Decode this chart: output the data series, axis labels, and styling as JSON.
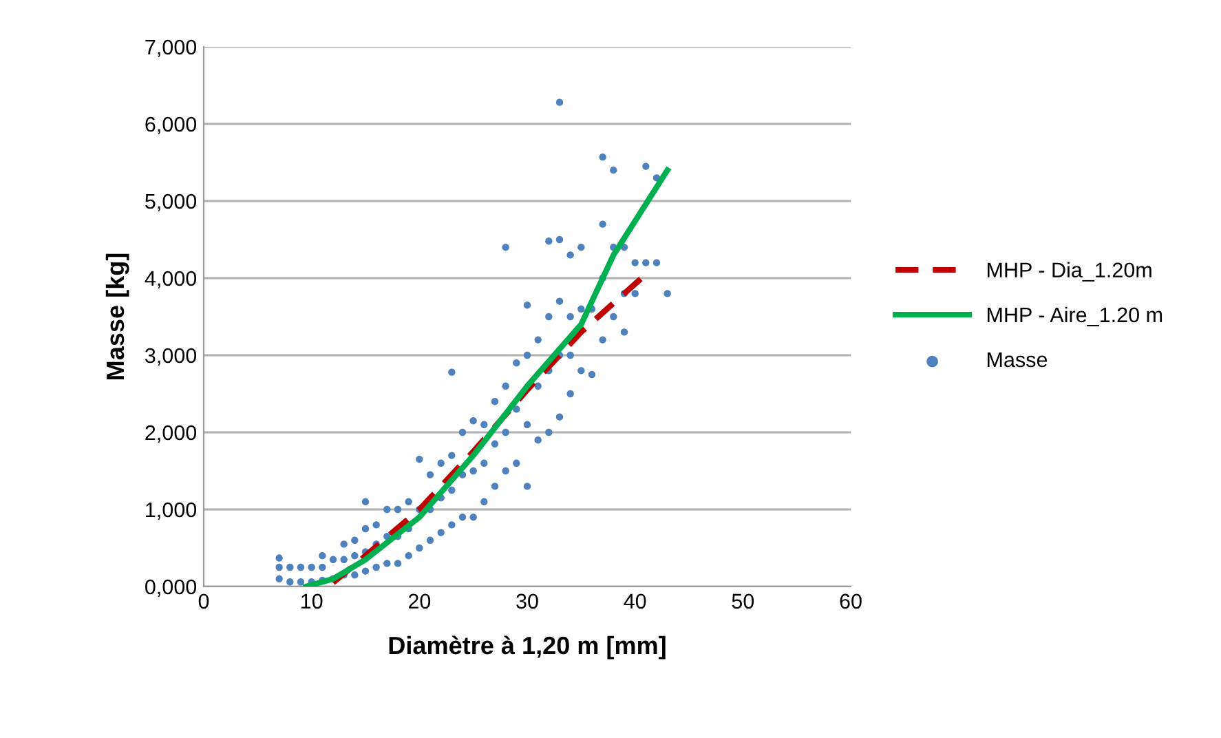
{
  "chart_data": {
    "type": "scatter",
    "xlabel": "Diamètre à 1,20 m [mm]",
    "ylabel": "Masse [kg]",
    "xlim": [
      0,
      60
    ],
    "xticks": [
      0,
      10,
      20,
      30,
      40,
      50,
      60
    ],
    "ylim": [
      0,
      7000
    ],
    "yticks": [
      {
        "value": 0,
        "label": "0,000"
      },
      {
        "value": 1000,
        "label": "1,000"
      },
      {
        "value": 2000,
        "label": "2,000"
      },
      {
        "value": 3000,
        "label": "3,000"
      },
      {
        "value": 4000,
        "label": "4,000"
      },
      {
        "value": 5000,
        "label": "5,000"
      },
      {
        "value": 6000,
        "label": "6,000"
      },
      {
        "value": 7000,
        "label": "7,000"
      }
    ],
    "grid": "y",
    "legend": "right",
    "series": [
      {
        "name": "MHP - Dia_1.20m",
        "type": "line",
        "line_style": "dashed",
        "marker": "none",
        "color": "#c00000",
        "x": [
          12,
          15,
          20,
          25,
          30,
          35,
          41
        ],
        "values": [
          50,
          400,
          1000,
          1750,
          2550,
          3300,
          4050
        ]
      },
      {
        "name": "MHP - Aire_1.20 m",
        "type": "line",
        "line_style": "solid",
        "marker": "none",
        "color": "#00b050",
        "x": [
          9.5,
          12,
          15,
          20,
          25,
          30,
          35,
          38,
          43
        ],
        "values": [
          0,
          100,
          350,
          900,
          1700,
          2600,
          3400,
          4300,
          5400
        ]
      },
      {
        "name": "Masse",
        "marker": "circle",
        "color": "#4f81bd",
        "x": [
          7,
          7,
          7,
          8,
          8,
          9,
          9,
          10,
          10,
          11,
          11,
          11,
          12,
          12,
          13,
          13,
          13,
          14,
          14,
          14,
          15,
          15,
          15,
          15,
          16,
          16,
          16,
          17,
          17,
          17,
          18,
          18,
          18,
          19,
          19,
          19,
          20,
          20,
          20,
          21,
          21,
          21,
          22,
          22,
          22,
          23,
          23,
          23,
          23,
          24,
          24,
          24,
          25,
          25,
          25,
          26,
          26,
          26,
          27,
          27,
          27,
          28,
          28,
          28,
          28,
          29,
          29,
          29,
          30,
          30,
          30,
          30,
          31,
          31,
          31,
          32,
          32,
          32,
          32,
          33,
          33,
          33,
          33,
          33,
          34,
          34,
          34,
          34,
          35,
          35,
          35,
          36,
          36,
          37,
          37,
          37,
          37,
          38,
          38,
          38,
          39,
          39,
          39,
          40,
          40,
          41,
          41,
          42,
          42,
          43
        ],
        "values": [
          100,
          250,
          370,
          60,
          250,
          60,
          250,
          60,
          250,
          80,
          250,
          400,
          100,
          350,
          150,
          350,
          550,
          150,
          400,
          600,
          200,
          450,
          750,
          1100,
          250,
          550,
          800,
          300,
          650,
          1000,
          300,
          650,
          1000,
          400,
          750,
          1100,
          500,
          1000,
          1650,
          600,
          1000,
          1450,
          700,
          1150,
          1600,
          800,
          1250,
          1700,
          2780,
          900,
          1450,
          2000,
          900,
          1500,
          2150,
          1100,
          1600,
          2100,
          1300,
          1850,
          2400,
          1500,
          2000,
          2600,
          4400,
          1600,
          2300,
          2900,
          1300,
          2100,
          3000,
          3650,
          1900,
          2600,
          3200,
          2000,
          2800,
          3500,
          4480,
          2200,
          3000,
          3700,
          4500,
          6280,
          2500,
          3000,
          3500,
          4300,
          2800,
          3600,
          4400,
          2750,
          3600,
          3200,
          4000,
          4700,
          5570,
          3500,
          4400,
          5400,
          3300,
          3800,
          4400,
          3800,
          4200,
          4200,
          5450,
          4200,
          5300,
          3800
        ]
      }
    ]
  }
}
